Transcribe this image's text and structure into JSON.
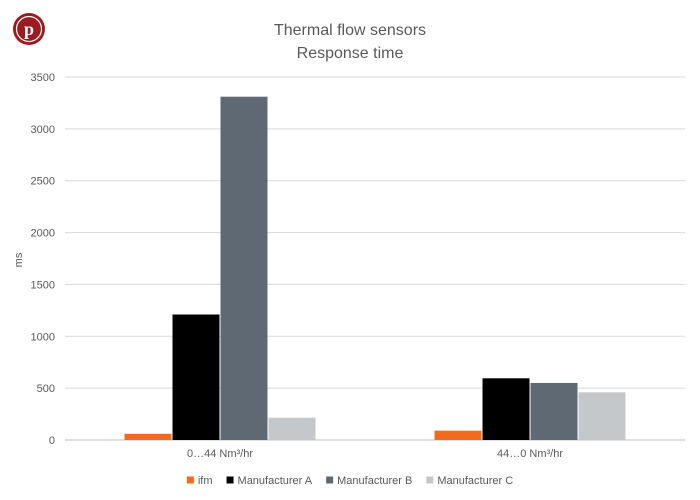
{
  "logo": {
    "letter": "p",
    "color": "#9b1c1f"
  },
  "chart_data": {
    "type": "bar",
    "title": [
      "Thermal flow sensors",
      "Response time"
    ],
    "xlabel": "",
    "ylabel": "ms",
    "ylim": [
      0,
      3500
    ],
    "yticks": [
      0,
      500,
      1000,
      1500,
      2000,
      2500,
      3000,
      3500
    ],
    "grid": true,
    "legend_position": "bottom",
    "categories": [
      "0…44 Nm³/hr",
      "44…0 Nm³/hr"
    ],
    "series": [
      {
        "name": "ifm",
        "color": "#f26b1d",
        "values": [
          60,
          90
        ]
      },
      {
        "name": "Manufacturer A",
        "color": "#000000",
        "values": [
          1210,
          595
        ]
      },
      {
        "name": "Manufacturer B",
        "color": "#5f6973",
        "values": [
          3310,
          550
        ]
      },
      {
        "name": "Manufacturer C",
        "color": "#c5c8cb",
        "values": [
          215,
          460
        ]
      }
    ]
  }
}
